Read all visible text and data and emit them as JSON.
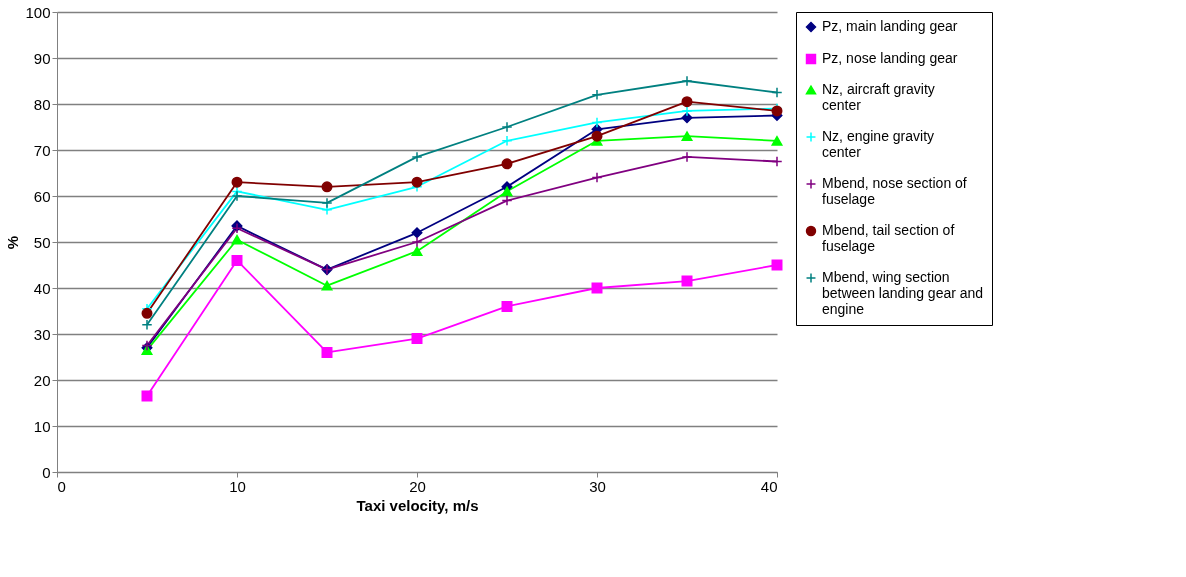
{
  "chart_data": {
    "type": "line",
    "xlabel": "Taxi velocity, m/s",
    "ylabel": "%",
    "x": [
      5,
      10,
      15,
      20,
      25,
      30,
      35,
      40
    ],
    "xlim": [
      0,
      40
    ],
    "xticks": [
      0,
      10,
      20,
      30,
      40
    ],
    "ylim": [
      0,
      100
    ],
    "yticks": [
      0,
      10,
      20,
      30,
      40,
      50,
      60,
      70,
      80,
      90,
      100
    ],
    "grid": "y",
    "legend": "right",
    "series": [
      {
        "name": "Pz, main landing gear",
        "color": "#000080",
        "marker": "diamond",
        "values": [
          27,
          53.5,
          44,
          52,
          62,
          74.5,
          77,
          77.5
        ]
      },
      {
        "name": "Pz, nose landing gear",
        "color": "#ff00ff",
        "marker": "square",
        "values": [
          16.5,
          46,
          26,
          29,
          36,
          40,
          41.5,
          45
        ]
      },
      {
        "name": "Nz, aircraft gravity center",
        "color": "#00ff00",
        "marker": "triangle",
        "values": [
          26.5,
          50.5,
          40.5,
          48,
          61,
          72,
          73,
          72
        ]
      },
      {
        "name": "Nz, engine gravity center",
        "color": "#00ffff",
        "marker": "cross",
        "values": [
          35.5,
          61,
          57,
          62,
          72,
          76,
          78.5,
          79
        ]
      },
      {
        "name": "Mbend, nose section of fuselage",
        "color": "#800080",
        "marker": "cross",
        "values": [
          27.5,
          53,
          44,
          50,
          59,
          64,
          68.5,
          67.5
        ]
      },
      {
        "name": "Mbend, tail section of fuselage",
        "color": "#800000",
        "marker": "circle",
        "values": [
          34.5,
          63,
          62,
          63,
          67,
          73,
          80.5,
          78.5
        ]
      },
      {
        "name": "Mbend, wing section between landing gear and engine",
        "color": "#008080",
        "marker": "cross",
        "values": [
          32,
          60,
          58.5,
          68.5,
          75,
          82,
          85,
          82.5
        ]
      }
    ]
  }
}
